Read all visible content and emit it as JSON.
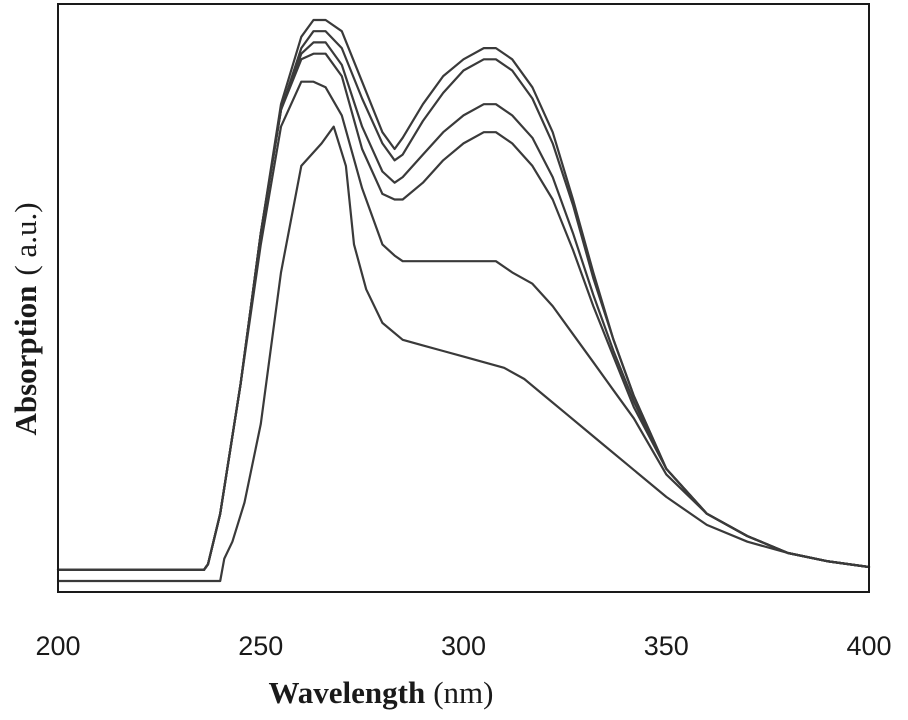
{
  "chart_data": {
    "type": "line",
    "title": "",
    "xlabel_bold": "Wavelength",
    "xlabel_unit": "(nm)",
    "ylabel_bold": "Absorption",
    "ylabel_unit": "( a.u.)",
    "xlim": [
      200,
      400
    ],
    "ylim": [
      0,
      1
    ],
    "x_ticks": [
      200,
      250,
      300,
      350,
      400
    ],
    "y_ticks_shown": false,
    "grid": false,
    "legend": "none",
    "line_color": "#3a3a3a",
    "series": [
      {
        "x": [
          200,
          236,
          237,
          240,
          245,
          250,
          255,
          260,
          263,
          266,
          270,
          275,
          280,
          283,
          285,
          290,
          295,
          300,
          305,
          308,
          312,
          317,
          322,
          327,
          332,
          337,
          342,
          350,
          360,
          370,
          380,
          390,
          400
        ],
        "values": [
          0.02,
          0.02,
          0.03,
          0.12,
          0.35,
          0.62,
          0.85,
          0.97,
          1.0,
          1.0,
          0.98,
          0.89,
          0.8,
          0.77,
          0.79,
          0.85,
          0.9,
          0.93,
          0.95,
          0.95,
          0.93,
          0.88,
          0.8,
          0.68,
          0.55,
          0.43,
          0.33,
          0.2,
          0.12,
          0.08,
          0.05,
          0.035,
          0.025
        ]
      },
      {
        "x": [
          200,
          236,
          237,
          240,
          245,
          250,
          255,
          260,
          263,
          266,
          270,
          275,
          280,
          283,
          285,
          290,
          295,
          300,
          305,
          308,
          312,
          317,
          322,
          327,
          332,
          337,
          342,
          350,
          360,
          370,
          380,
          390,
          400
        ],
        "values": [
          0.02,
          0.02,
          0.03,
          0.12,
          0.35,
          0.62,
          0.84,
          0.95,
          0.98,
          0.98,
          0.95,
          0.86,
          0.78,
          0.75,
          0.76,
          0.82,
          0.87,
          0.91,
          0.93,
          0.93,
          0.91,
          0.86,
          0.78,
          0.67,
          0.54,
          0.43,
          0.33,
          0.2,
          0.12,
          0.08,
          0.05,
          0.035,
          0.025
        ]
      },
      {
        "x": [
          200,
          236,
          237,
          240,
          245,
          250,
          255,
          260,
          263,
          266,
          270,
          275,
          280,
          283,
          285,
          290,
          295,
          300,
          305,
          308,
          312,
          317,
          322,
          327,
          332,
          337,
          342,
          350,
          360,
          370,
          380,
          390,
          400
        ],
        "values": [
          0.02,
          0.02,
          0.03,
          0.12,
          0.35,
          0.62,
          0.84,
          0.94,
          0.96,
          0.96,
          0.92,
          0.81,
          0.73,
          0.71,
          0.72,
          0.76,
          0.8,
          0.83,
          0.85,
          0.85,
          0.83,
          0.79,
          0.72,
          0.62,
          0.51,
          0.41,
          0.32,
          0.2,
          0.12,
          0.08,
          0.05,
          0.035,
          0.025
        ]
      },
      {
        "x": [
          200,
          236,
          237,
          240,
          245,
          250,
          255,
          260,
          263,
          266,
          270,
          275,
          280,
          283,
          285,
          290,
          295,
          300,
          305,
          308,
          312,
          317,
          322,
          327,
          332,
          337,
          342,
          350,
          360,
          370,
          380,
          390,
          400
        ],
        "values": [
          0.02,
          0.02,
          0.03,
          0.12,
          0.35,
          0.62,
          0.84,
          0.93,
          0.94,
          0.94,
          0.9,
          0.77,
          0.69,
          0.68,
          0.68,
          0.71,
          0.75,
          0.78,
          0.8,
          0.8,
          0.78,
          0.74,
          0.68,
          0.59,
          0.49,
          0.4,
          0.31,
          0.2,
          0.12,
          0.08,
          0.05,
          0.035,
          0.025
        ]
      },
      {
        "x": [
          200,
          236,
          237,
          240,
          245,
          250,
          255,
          260,
          263,
          266,
          270,
          275,
          280,
          283,
          285,
          290,
          295,
          300,
          305,
          308,
          312,
          317,
          322,
          327,
          332,
          337,
          342,
          350,
          360,
          370,
          380,
          390,
          400
        ],
        "values": [
          0.02,
          0.02,
          0.03,
          0.12,
          0.35,
          0.6,
          0.81,
          0.89,
          0.89,
          0.88,
          0.83,
          0.7,
          0.6,
          0.58,
          0.57,
          0.57,
          0.57,
          0.57,
          0.57,
          0.57,
          0.55,
          0.53,
          0.49,
          0.44,
          0.39,
          0.34,
          0.29,
          0.19,
          0.12,
          0.08,
          0.05,
          0.035,
          0.025
        ]
      },
      {
        "x": [
          200,
          240,
          241,
          243,
          246,
          250,
          255,
          260,
          265,
          268,
          271,
          273,
          276,
          280,
          285,
          290,
          295,
          300,
          305,
          310,
          315,
          320,
          325,
          330,
          335,
          340,
          350,
          360,
          370,
          380,
          390,
          400
        ],
        "values": [
          0.0,
          0.0,
          0.04,
          0.07,
          0.14,
          0.28,
          0.55,
          0.74,
          0.78,
          0.81,
          0.74,
          0.6,
          0.52,
          0.46,
          0.43,
          0.42,
          0.41,
          0.4,
          0.39,
          0.38,
          0.36,
          0.33,
          0.3,
          0.27,
          0.24,
          0.21,
          0.15,
          0.1,
          0.07,
          0.05,
          0.035,
          0.025
        ]
      }
    ]
  }
}
